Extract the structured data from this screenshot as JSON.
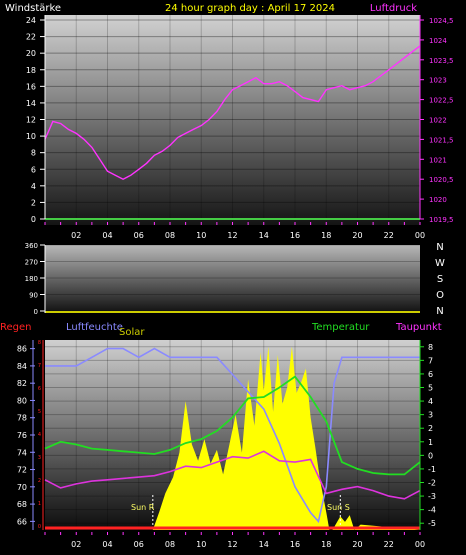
{
  "header": {
    "left_label": "Windstärke",
    "title": "24 hour graph day : April 17 2024",
    "right_label": "Luftdruck"
  },
  "direction_letters": [
    "N",
    "W",
    "S",
    "O",
    "N"
  ],
  "bottom_labels": {
    "rain": "Regen",
    "humidity": "Luftfeuchte",
    "solar": "Solar",
    "temperature": "Temperatur",
    "dewpoint": "Taupunkt",
    "sunrise": "Sun R",
    "sunset": "Sun S"
  },
  "colors": {
    "pressure": "#ff33ff",
    "humidity": "#8a8aff",
    "temperature": "#22dd22",
    "dewpoint": "#dd33dd",
    "solar": "#ffff00",
    "rain": "#ff2222",
    "header_title": "#ffff00",
    "header_right": "#ff33ff",
    "axis_text": "#ffffff"
  },
  "chart_data": [
    {
      "type": "line",
      "panel": "wind_pressure",
      "x_ticks": [
        "02",
        "04",
        "06",
        "08",
        "10",
        "12",
        "14",
        "16",
        "18",
        "20",
        "22",
        "00"
      ],
      "y_left_ticks": [
        "0",
        "2",
        "4",
        "6",
        "8",
        "10",
        "12",
        "14",
        "16",
        "18",
        "20",
        "22",
        "24"
      ],
      "y_left_range": [
        0,
        24
      ],
      "y_right_ticks": [
        "1019,5",
        "1020",
        "1020,5",
        "1021",
        "1021,5",
        "1022",
        "1022,5",
        "1023",
        "1023,5",
        "1024",
        "1024,5"
      ],
      "y_right_range": [
        1019.5,
        1024.5
      ],
      "series": [
        {
          "axis": "right",
          "x": [
            0,
            0.5,
            1,
            1.5,
            2,
            2.5,
            3,
            3.5,
            4,
            4.5,
            5,
            5.5,
            6,
            6.5,
            7,
            7.5,
            8,
            8.5,
            9,
            9.5,
            10,
            10.5,
            11,
            11.5,
            12,
            12.5,
            13,
            13.5,
            14,
            14.5,
            15,
            15.5,
            16,
            16.5,
            17,
            17.5,
            18,
            18.5,
            19,
            19.5,
            20,
            20.5,
            21,
            21.5,
            22,
            22.5,
            23,
            23.5,
            24
          ],
          "values": [
            1021.5,
            1021.95,
            1021.9,
            1021.75,
            1021.65,
            1021.5,
            1021.3,
            1021.0,
            1020.7,
            1020.6,
            1020.5,
            1020.6,
            1020.75,
            1020.9,
            1021.1,
            1021.2,
            1021.35,
            1021.55,
            1021.65,
            1021.75,
            1021.85,
            1022.0,
            1022.2,
            1022.5,
            1022.75,
            1022.85,
            1022.95,
            1023.05,
            1022.9,
            1022.9,
            1022.95,
            1022.85,
            1022.7,
            1022.55,
            1022.5,
            1022.45,
            1022.75,
            1022.8,
            1022.85,
            1022.75,
            1022.8,
            1022.85,
            1022.95,
            1023.1,
            1023.25,
            1023.4,
            1023.55,
            1023.7,
            1023.85
          ]
        }
      ]
    },
    {
      "type": "line",
      "panel": "wind_direction",
      "x_ticks": [
        "02",
        "04",
        "06",
        "08",
        "10",
        "12",
        "14",
        "16",
        "18",
        "20",
        "22",
        "00"
      ],
      "y_ticks": [
        "0",
        "90",
        "180",
        "270",
        "360"
      ],
      "y_range": [
        0,
        360
      ]
    },
    {
      "type": "area",
      "panel": "rain_humidity_solar_temperature_dewpoint",
      "x_ticks": [
        "02",
        "04",
        "06",
        "08",
        "10",
        "12",
        "14",
        "16",
        "18",
        "20",
        "22",
        "00"
      ],
      "y_left_ticks": [
        "66",
        "68",
        "70",
        "72",
        "74",
        "76",
        "78",
        "80",
        "82",
        "84",
        "86"
      ],
      "y_left_range": [
        65,
        87
      ],
      "y_left_label": "Luftfeuchte",
      "y_right_ticks": [
        "-5",
        "-4",
        "-3",
        "-2",
        "-1",
        "0",
        "1",
        "2",
        "3",
        "4",
        "5",
        "6",
        "7",
        "8"
      ],
      "y_right_range": [
        -5.5,
        8.5
      ],
      "rain_ticks": [
        "0",
        "1",
        "2",
        "3",
        "4",
        "5",
        "6",
        "7",
        "8"
      ],
      "series": [
        {
          "name": "Luftfeuchte",
          "axis": "left",
          "x": [
            0,
            1,
            2,
            3,
            4,
            5,
            6,
            7,
            8,
            9,
            10,
            11,
            12,
            13,
            14,
            15,
            16,
            17,
            17.5,
            18,
            18.5,
            19,
            20,
            21,
            22,
            23,
            24
          ],
          "values": [
            84,
            84,
            84,
            85,
            86,
            86,
            85,
            86,
            85,
            85,
            85,
            85,
            83,
            81,
            79,
            75,
            70,
            67,
            66,
            70,
            82,
            85,
            85,
            85,
            85,
            85,
            85
          ]
        },
        {
          "name": "Temperatur",
          "axis": "right",
          "x": [
            0,
            1,
            2,
            3,
            4,
            5,
            6,
            7,
            8,
            9,
            10,
            11,
            12,
            13,
            14,
            15,
            16,
            17,
            18,
            19,
            20,
            21,
            22,
            23,
            24
          ],
          "values": [
            0.5,
            1.0,
            0.8,
            0.5,
            0.4,
            0.3,
            0.2,
            0.1,
            0.4,
            0.9,
            1.2,
            1.8,
            2.8,
            4.2,
            4.3,
            5.0,
            5.8,
            4.3,
            2.5,
            -0.5,
            -1.0,
            -1.3,
            -1.4,
            -1.4,
            -0.5
          ]
        },
        {
          "name": "Taupunkt",
          "axis": "right",
          "x": [
            0,
            1,
            2,
            3,
            4,
            5,
            6,
            7,
            8,
            9,
            10,
            11,
            12,
            13,
            14,
            15,
            16,
            17,
            18,
            19,
            20,
            21,
            22,
            23,
            24
          ],
          "values": [
            -1.8,
            -2.4,
            -2.1,
            -1.9,
            -1.8,
            -1.7,
            -1.6,
            -1.5,
            -1.2,
            -0.8,
            -0.9,
            -0.5,
            -0.1,
            -0.2,
            0.3,
            -0.4,
            -0.5,
            -0.3,
            -2.8,
            -2.5,
            -2.3,
            -2.6,
            -3.0,
            -3.2,
            -2.6
          ]
        },
        {
          "name": "Solar",
          "axis": "right",
          "x": [
            0,
            6.9,
            7.3,
            7.7,
            8.2,
            8.6,
            9.0,
            9.4,
            9.8,
            10.2,
            10.6,
            11.0,
            11.4,
            11.8,
            12.2,
            12.6,
            13.0,
            13.4,
            13.8,
            14.0,
            14.3,
            14.6,
            14.9,
            15.2,
            15.5,
            15.8,
            16.1,
            16.4,
            16.7,
            17.0,
            17.3,
            17.6,
            18.0,
            18.2,
            18.4,
            18.9,
            19.2,
            19.5,
            19.8,
            20.2,
            24
          ],
          "values": [
            -5.5,
            -5.5,
            -4.2,
            -2.8,
            -1.6,
            0.2,
            4.0,
            0.8,
            -0.4,
            1.2,
            -0.6,
            0.4,
            -1.4,
            0.8,
            3.0,
            0.2,
            5.6,
            2.2,
            7.6,
            4.8,
            8.0,
            3.2,
            7.4,
            3.8,
            5.0,
            8.0,
            4.6,
            5.4,
            6.4,
            2.8,
            0.6,
            -1.8,
            -4.2,
            -5.5,
            -5.5,
            -4.5,
            -4.9,
            -4.4,
            -5.5,
            -5.1,
            -5.5
          ]
        },
        {
          "name": "Regen",
          "axis": "rain",
          "x": [
            0,
            24
          ],
          "values": [
            0,
            0
          ]
        }
      ]
    }
  ]
}
